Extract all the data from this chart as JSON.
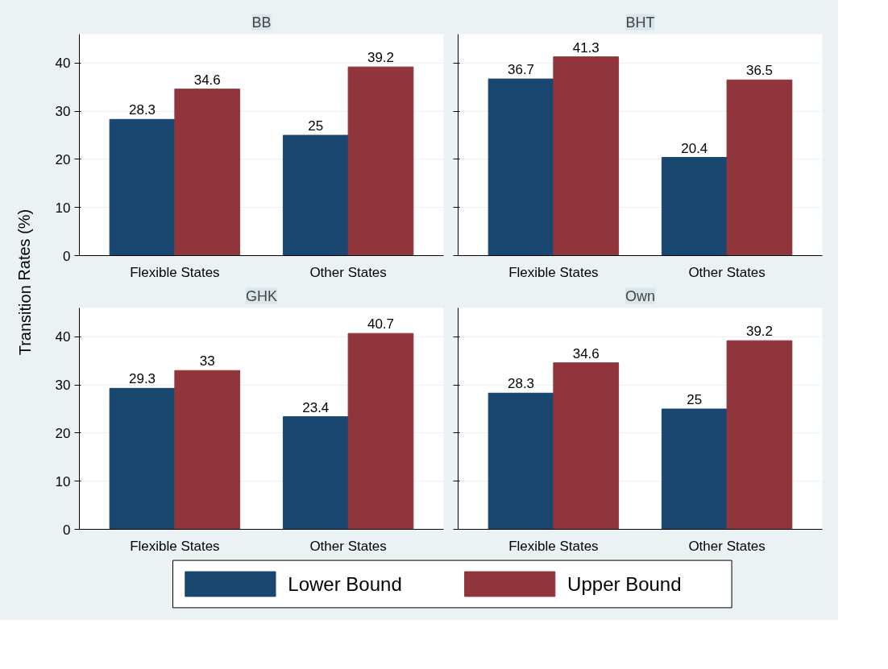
{
  "chart_data": [
    {
      "type": "bar",
      "title": "BB",
      "ylabel": "Transition Rates (%)",
      "categories": [
        "Flexible States",
        "Other States"
      ],
      "legend": "bottom",
      "grid": "y",
      "data_labels": true,
      "ylim": [
        0,
        46
      ],
      "yticks": [
        0,
        10,
        20,
        30,
        40
      ],
      "series": [
        {
          "name": "Lower Bound",
          "color": "#1a476f",
          "values": [
            28.3,
            25
          ]
        },
        {
          "name": "Upper Bound",
          "color": "#90353b",
          "values": [
            34.6,
            39.2
          ]
        }
      ]
    },
    {
      "type": "bar",
      "title": "BHT",
      "categories": [
        "Flexible States",
        "Other States"
      ],
      "grid": "y",
      "data_labels": true,
      "tick_labels": "x",
      "ylim": [
        0,
        46
      ],
      "yticks": [
        0,
        10,
        20,
        30,
        40
      ],
      "series": [
        {
          "color": "#1a476f",
          "values": [
            36.7,
            20.4
          ]
        },
        {
          "color": "#90353b",
          "values": [
            41.3,
            36.5
          ]
        }
      ]
    },
    {
      "type": "bar",
      "title": "GHK",
      "categories": [
        "Flexible States",
        "Other States"
      ],
      "grid": "y",
      "data_labels": true,
      "ylim": [
        0,
        46
      ],
      "yticks": [
        0,
        10,
        20,
        30,
        40
      ],
      "series": [
        {
          "color": "#1a476f",
          "values": [
            29.3,
            23.4
          ]
        },
        {
          "color": "#90353b",
          "values": [
            33,
            40.7
          ]
        }
      ]
    },
    {
      "type": "bar",
      "title": "Own",
      "categories": [
        "Flexible States",
        "Other States"
      ],
      "grid": "y",
      "data_labels": true,
      "tick_labels": "x",
      "ylim": [
        0,
        46
      ],
      "yticks": [
        0,
        10,
        20,
        30,
        40
      ],
      "series": [
        {
          "color": "#1a476f",
          "values": [
            28.3,
            25
          ]
        },
        {
          "color": "#90353b",
          "values": [
            34.6,
            39.2
          ]
        }
      ]
    }
  ]
}
